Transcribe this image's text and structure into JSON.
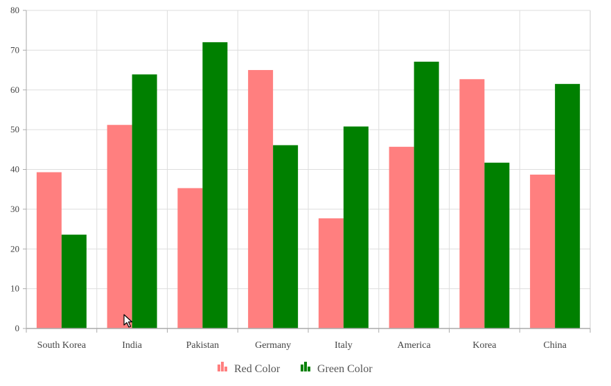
{
  "chart_data": {
    "type": "bar",
    "categories": [
      "South Korea",
      "India",
      "Pakistan",
      "Germany",
      "Italy",
      "America",
      "Korea",
      "China"
    ],
    "series": [
      {
        "name": "Red Color",
        "color": "#ff7f7f",
        "values": [
          39.3,
          51.2,
          35.3,
          65.0,
          27.7,
          45.7,
          62.7,
          38.7
        ]
      },
      {
        "name": "Green Color",
        "color": "#008000",
        "values": [
          23.6,
          63.9,
          72.0,
          46.1,
          50.8,
          67.1,
          41.7,
          61.5
        ]
      }
    ],
    "y_ticks": [
      "0",
      "10",
      "20",
      "30",
      "40",
      "50",
      "60",
      "70",
      "80"
    ],
    "ylim": [
      0,
      80
    ],
    "grid": true,
    "legend": "bottom-center"
  },
  "cursor": {
    "icon": "mouse-pointer-icon"
  }
}
